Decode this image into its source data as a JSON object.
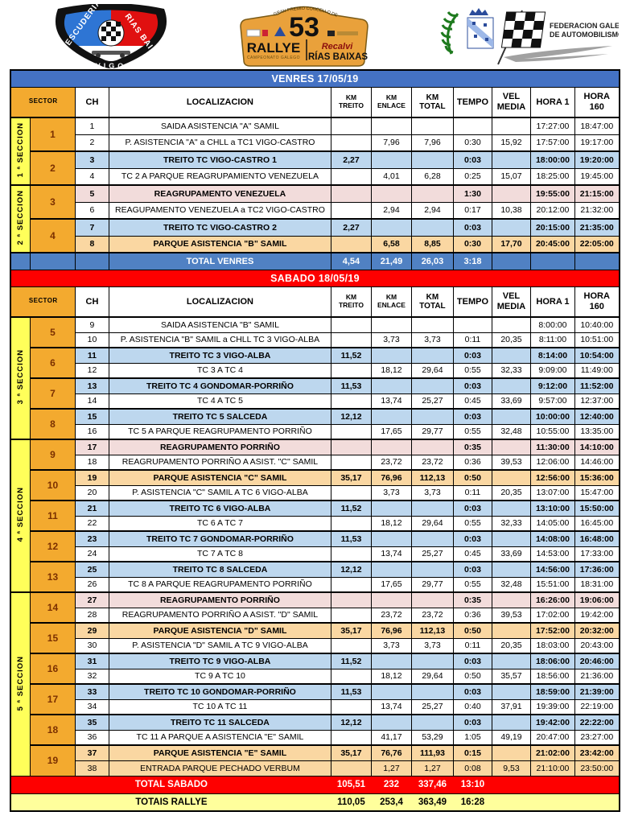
{
  "header": {
    "left_logo": {
      "line1": "ESCUDERIA",
      "line2": "RIAS BAIXAS",
      "line3": "VIGO"
    },
    "plate": {
      "arc": "GRAN PREMIO CONCELLO DE VIGO",
      "number": "53",
      "rallye": "RALLYE",
      "campeonato": "CAMPEONATO GALEGO",
      "sponsor": "Recalvi",
      "name": "RÍAS BAIXAS"
    },
    "right_logo": {
      "line1": "FEDERACION GALEGA",
      "line2": "DE AUTOMOBILISMO"
    }
  },
  "colors": {
    "venres_bar": "#4472C4",
    "sabado_bar": "#FE0000",
    "treito_row": "#BDD7EE",
    "reagrupamento_row": "#F2DCDB",
    "parque_row": "#FAD7A2",
    "sector_cell": "#F3AA2F",
    "section_label": "#FFFF5A",
    "total_venres_row": "#5081C3",
    "total_sabado_row": "#FE0000",
    "totais_row": "#FFFF9C"
  },
  "venres": {
    "title": "VENRES 17/05/19",
    "columns": [
      "SECTOR",
      "CH",
      "LOCALIZACION",
      "KM\nTREITO",
      "KM\nENLACE",
      "KM\nTOTAL",
      "TEMPO",
      "VEL\nMEDIA",
      "HORA 1",
      "HORA 160"
    ],
    "sections": [
      {
        "label": "1 ª SECCION",
        "sectors": [
          "1",
          "2"
        ]
      },
      {
        "label": "2 ª SECCION",
        "sectors": [
          "3",
          "4"
        ]
      }
    ],
    "rows": [
      [
        "1",
        "SAIDA ASISTENCIA \"A\" SAMIL",
        "",
        "",
        "",
        "",
        "",
        "17:27:00",
        "18:47:00",
        "n"
      ],
      [
        "2",
        "P. ASISTENCIA \"A\"  a CHLL a TC1 VIGO-CASTRO",
        "",
        "7,96",
        "7,96",
        "0:30",
        "15,92",
        "17:57:00",
        "19:17:00",
        "n"
      ],
      [
        "3",
        "TREITO TC VIGO-CASTRO 1",
        "2,27",
        "",
        "",
        "0:03",
        "",
        "18:00:00",
        "19:20:00",
        "t"
      ],
      [
        "4",
        "TC 2 A PARQUE REAGRUPAMIENTO VENEZUELA",
        "",
        "4,01",
        "6,28",
        "0:25",
        "15,07",
        "18:25:00",
        "19:45:00",
        "n"
      ],
      [
        "5",
        "REAGRUPAMENTO VENEZUELA",
        "",
        "",
        "",
        "1:30",
        "",
        "19:55:00",
        "21:15:00",
        "r"
      ],
      [
        "6",
        "REAGUPAMENTO VENEZUELA  a TC2 VIGO-CASTRO",
        "",
        "2,94",
        "2,94",
        "0:17",
        "10,38",
        "20:12:00",
        "21:32:00",
        "n"
      ],
      [
        "7",
        "TREITO TC VIGO-CASTRO 2",
        "2,27",
        "",
        "",
        "0:03",
        "",
        "20:15:00",
        "21:35:00",
        "t"
      ],
      [
        "8",
        "PARQUE ASISTENCIA \"B\" SAMIL",
        "",
        "6,58",
        "8,85",
        "0:30",
        "17,70",
        "20:45:00",
        "22:05:00",
        "p"
      ]
    ],
    "total": {
      "label": "TOTAL VENRES",
      "treito": "4,54",
      "enlace": "21,49",
      "total": "26,03",
      "tempo": "3:18"
    }
  },
  "sabado": {
    "title": "SABADO 18/05/19",
    "columns": [
      "SECTOR",
      "CH",
      "LOCALIZACION",
      "KM\nTREITO",
      "KM\nENLACE",
      "KM\nTOTAL",
      "TEMPO",
      "VEL\nMEDIA",
      "HORA 1",
      "HORA\n160"
    ],
    "sections": [
      {
        "label": "3 ª SECCION",
        "sectors": [
          "5",
          "6",
          "7",
          "8"
        ]
      },
      {
        "label": "4 ª SECCION",
        "sectors": [
          "9",
          "10",
          "11",
          "12",
          "13"
        ]
      },
      {
        "label": "5 ª SECCION",
        "sectors": [
          "14",
          "15",
          "16",
          "17",
          "18",
          "19"
        ]
      }
    ],
    "rows": [
      [
        "9",
        "SAIDA ASISTENCIA \"B\" SAMIL",
        "",
        "",
        "",
        "",
        "",
        "8:00:00",
        "10:40:00",
        "n"
      ],
      [
        "10",
        "P. ASISTENCIA \"B\" SAMIL  a CHLL  TC 3 VIGO-ALBA",
        "",
        "3,73",
        "3,73",
        "0:11",
        "20,35",
        "8:11:00",
        "10:51:00",
        "n"
      ],
      [
        "11",
        "TREITO TC 3 VIGO-ALBA",
        "11,52",
        "",
        "",
        "0:03",
        "",
        "8:14:00",
        "10:54:00",
        "t"
      ],
      [
        "12",
        "TC 3 A TC 4",
        "",
        "18,12",
        "29,64",
        "0:55",
        "32,33",
        "9:09:00",
        "11:49:00",
        "n"
      ],
      [
        "13",
        "TREITO TC 4 GONDOMAR-PORRIÑO",
        "11,53",
        "",
        "",
        "0:03",
        "",
        "9:12:00",
        "11:52:00",
        "t"
      ],
      [
        "14",
        "TC 4 A TC 5",
        "",
        "13,74",
        "25,27",
        "0:45",
        "33,69",
        "9:57:00",
        "12:37:00",
        "n"
      ],
      [
        "15",
        "TREITO TC 5 SALCEDA",
        "12,12",
        "",
        "",
        "0:03",
        "",
        "10:00:00",
        "12:40:00",
        "t"
      ],
      [
        "16",
        "TC 5 A PARQUE REAGRUPAMENTO PORRIÑO",
        "",
        "17,65",
        "29,77",
        "0:55",
        "32,48",
        "10:55:00",
        "13:35:00",
        "n"
      ],
      [
        "17",
        "REAGRUPAMENTO PORRIÑO",
        "",
        "",
        "",
        "0:35",
        "",
        "11:30:00",
        "14:10:00",
        "r"
      ],
      [
        "18",
        "REAGRUPAMENTO PORRIÑO A ASIST. \"C\" SAMIL",
        "",
        "23,72",
        "23,72",
        "0:36",
        "39,53",
        "12:06:00",
        "14:46:00",
        "n"
      ],
      [
        "19",
        "PARQUE ASISTENCIA \"C\" SAMIL",
        "35,17",
        "76,96",
        "112,13",
        "0:50",
        "",
        "12:56:00",
        "15:36:00",
        "p"
      ],
      [
        "20",
        "P. ASISTENCIA \"C\" SAMIL A TC 6  VIGO-ALBA",
        "",
        "3,73",
        "3,73",
        "0:11",
        "20,35",
        "13:07:00",
        "15:47:00",
        "n"
      ],
      [
        "21",
        "TREITO TC 6 VIGO-ALBA",
        "11,52",
        "",
        "",
        "0:03",
        "",
        "13:10:00",
        "15:50:00",
        "t"
      ],
      [
        "22",
        "TC 6 A TC 7",
        "",
        "18,12",
        "29,64",
        "0:55",
        "32,33",
        "14:05:00",
        "16:45:00",
        "n"
      ],
      [
        "23",
        "TREITO TC 7 GONDOMAR-PORRIÑO",
        "11,53",
        "",
        "",
        "0:03",
        "",
        "14:08:00",
        "16:48:00",
        "t"
      ],
      [
        "24",
        "TC 7 A TC 8",
        "",
        "13,74",
        "25,27",
        "0:45",
        "33,69",
        "14:53:00",
        "17:33:00",
        "n"
      ],
      [
        "25",
        "TREITO TC 8 SALCEDA",
        "12,12",
        "",
        "",
        "0:03",
        "",
        "14:56:00",
        "17:36:00",
        "t"
      ],
      [
        "26",
        "TC 8 A PARQUE REAGRUPAMENTO PORRIÑO",
        "",
        "17,65",
        "29,77",
        "0:55",
        "32,48",
        "15:51:00",
        "18:31:00",
        "n"
      ],
      [
        "27",
        "REAGRUPAMENTO PORRIÑO",
        "",
        "",
        "",
        "0:35",
        "",
        "16:26:00",
        "19:06:00",
        "r"
      ],
      [
        "28",
        "REAGRUPAMENTO PORRIÑO A ASIST. \"D\" SAMIL",
        "",
        "23,72",
        "23,72",
        "0:36",
        "39,53",
        "17:02:00",
        "19:42:00",
        "n"
      ],
      [
        "29",
        "PARQUE ASISTENCIA \"D\" SAMIL",
        "35,17",
        "76,96",
        "112,13",
        "0:50",
        "",
        "17:52:00",
        "20:32:00",
        "p"
      ],
      [
        "30",
        "P. ASISTENCIA \"D\" SAMIL A TC 9  VIGO-ALBA",
        "",
        "3,73",
        "3,73",
        "0:11",
        "20,35",
        "18:03:00",
        "20:43:00",
        "n"
      ],
      [
        "31",
        "TREITO TC 9 VIGO-ALBA",
        "11,52",
        "",
        "",
        "0:03",
        "",
        "18:06:00",
        "20:46:00",
        "t"
      ],
      [
        "32",
        "TC 9 A TC 10",
        "",
        "18,12",
        "29,64",
        "0:50",
        "35,57",
        "18:56:00",
        "21:36:00",
        "n"
      ],
      [
        "33",
        "TREITO TC 10 GONDOMAR-PORRIÑO",
        "11,53",
        "",
        "",
        "0:03",
        "",
        "18:59:00",
        "21:39:00",
        "t"
      ],
      [
        "34",
        "TC 10 A TC 11",
        "",
        "13,74",
        "25,27",
        "0:40",
        "37,91",
        "19:39:00",
        "22:19:00",
        "n"
      ],
      [
        "35",
        "TREITO TC 11 SALCEDA",
        "12,12",
        "",
        "",
        "0:03",
        "",
        "19:42:00",
        "22:22:00",
        "t"
      ],
      [
        "36",
        "TC 11 A PARQUE A ASISTENCIA \"E\" SAMIL",
        "",
        "41,17",
        "53,29",
        "1:05",
        "49,19",
        "20:47:00",
        "23:27:00",
        "n"
      ],
      [
        "37",
        "PARQUE ASISTENCIA \"E\" SAMIL",
        "35,17",
        "76,76",
        "111,93",
        "0:15",
        "",
        "21:02:00",
        "23:42:00",
        "p"
      ],
      [
        "38",
        "ENTRADA PARQUE PECHADO VERBUM",
        "",
        "1,27",
        "1,27",
        "0:08",
        "9,53",
        "21:10:00",
        "23:50:00",
        "p2"
      ]
    ],
    "total": {
      "label": "TOTAL SABADO",
      "treito": "105,51",
      "enlace": "232",
      "total": "337,46",
      "tempo": "13:10"
    }
  },
  "totais": {
    "label": "TOTAIS RALLYE",
    "treito": "110,05",
    "enlace": "253,4",
    "total": "363,49",
    "tempo": "16:28"
  }
}
